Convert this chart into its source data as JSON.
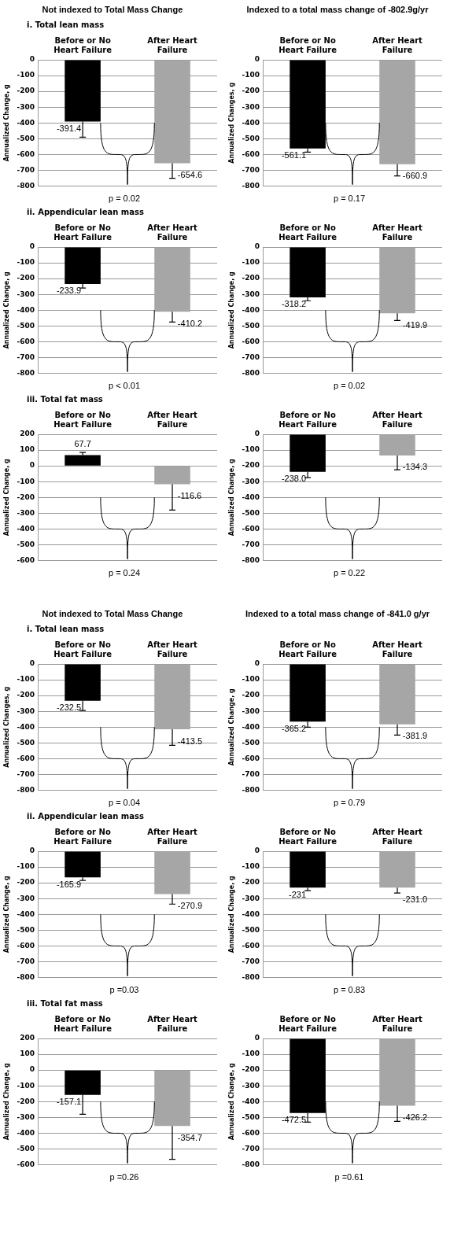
{
  "chart_data": [
    {
      "type": "bar",
      "title": "Not indexed to Total Mass Change",
      "subtitle": "i. Total lean mass",
      "categories": [
        "Before or No Heart Failure",
        "After Heart Failure"
      ],
      "values": [
        -391.4,
        -654.6
      ],
      "value_labels": [
        "-391.4",
        "-654.6"
      ],
      "colors": [
        "#000000",
        "#a6a6a6"
      ],
      "errors": [
        [
          -490,
          -391.4
        ],
        [
          -750,
          -654.6
        ]
      ],
      "ylabel": "Annualized Change, g",
      "ylim": [
        -800,
        0
      ],
      "yticks": [
        -800,
        -700,
        -600,
        -500,
        -400,
        -300,
        -200,
        -100,
        0
      ],
      "grid": "y",
      "annotations": [
        "p = 0.02"
      ]
    },
    {
      "type": "bar",
      "title": "Indexed to a total mass change of -802.9g/yr",
      "categories": [
        "Before or No Heart Failure",
        "After Heart Failure"
      ],
      "values": [
        -561.1,
        -660.9
      ],
      "value_labels": [
        "-561.1",
        "-660.9"
      ],
      "colors": [
        "#000000",
        "#a6a6a6"
      ],
      "errors": [
        [
          -585,
          -561.1
        ],
        [
          -735,
          -660.9
        ]
      ],
      "ylabel": "Annualized Changes, g",
      "ylim": [
        -800,
        0
      ],
      "yticks": [
        -800,
        -700,
        -600,
        -500,
        -400,
        -300,
        -200,
        -100,
        0
      ],
      "grid": "y",
      "annotations": [
        "p = 0.17"
      ]
    },
    {
      "type": "bar",
      "subtitle": "ii. Appendicular lean mass",
      "categories": [
        "Before or No Heart Failure",
        "After Heart Failure"
      ],
      "values": [
        -233.9,
        -410.2
      ],
      "value_labels": [
        "-233.9",
        "-410.2"
      ],
      "colors": [
        "#000000",
        "#a6a6a6"
      ],
      "errors": [
        [
          -260,
          -233.9
        ],
        [
          -475,
          -410.2
        ]
      ],
      "ylabel": "Annualized Change, g",
      "ylim": [
        -800,
        0
      ],
      "yticks": [
        -800,
        -700,
        -600,
        -500,
        -400,
        -300,
        -200,
        -100,
        0
      ],
      "grid": "y",
      "annotations": [
        "p < 0.01"
      ]
    },
    {
      "type": "bar",
      "categories": [
        "Before or No Heart Failure",
        "After Heart Failure"
      ],
      "values": [
        -318.2,
        -419.9
      ],
      "value_labels": [
        "-318.2",
        "-419.9"
      ],
      "colors": [
        "#000000",
        "#a6a6a6"
      ],
      "errors": [
        [
          -340,
          -318.2
        ],
        [
          -465,
          -419.9
        ]
      ],
      "ylabel": "Annualized Change, g",
      "ylim": [
        -800,
        0
      ],
      "yticks": [
        -800,
        -700,
        -600,
        -500,
        -400,
        -300,
        -200,
        -100,
        0
      ],
      "grid": "y",
      "annotations": [
        "p = 0.02"
      ]
    },
    {
      "type": "bar",
      "subtitle": "iii. Total fat mass",
      "categories": [
        "Before or No Heart Failure",
        "After Heart Failure"
      ],
      "values": [
        67.7,
        -116.6
      ],
      "value_labels": [
        "67.7",
        "-116.6"
      ],
      "colors": [
        "#000000",
        "#a6a6a6"
      ],
      "errors": [
        [
          67.7,
          85
        ],
        [
          -280,
          -116.6
        ]
      ],
      "ylabel": "Annualized Change, g",
      "ylim": [
        -600,
        200
      ],
      "yticks": [
        -600,
        -500,
        -400,
        -300,
        -200,
        -100,
        0,
        100,
        200
      ],
      "grid": "y",
      "annotations": [
        "p = 0.24"
      ]
    },
    {
      "type": "bar",
      "categories": [
        "Before or No Heart Failure",
        "After Heart Failure"
      ],
      "values": [
        -238.0,
        -134.3
      ],
      "value_labels": [
        "-238.0",
        "-134.3"
      ],
      "colors": [
        "#000000",
        "#a6a6a6"
      ],
      "errors": [
        [
          -275,
          -238.0
        ],
        [
          -225,
          -134.3
        ]
      ],
      "ylabel": "Annualized Change, g",
      "ylim": [
        -800,
        0
      ],
      "yticks": [
        -800,
        -700,
        -600,
        -500,
        -400,
        -300,
        -200,
        -100,
        0
      ],
      "grid": "y",
      "annotations": [
        "p = 0.22"
      ]
    },
    {
      "type": "bar",
      "title": "Not indexed to Total Mass Change",
      "subtitle": "i. Total lean mass",
      "categories": [
        "Before or No Heart Failure",
        "After Heart Failure"
      ],
      "values": [
        -232.5,
        -413.5
      ],
      "value_labels": [
        "-232.5",
        "-413.5"
      ],
      "colors": [
        "#000000",
        "#a6a6a6"
      ],
      "errors": [
        [
          -295,
          -232.5
        ],
        [
          -515,
          -413.5
        ]
      ],
      "ylabel": "Annualized Changes, g",
      "ylim": [
        -800,
        0
      ],
      "yticks": [
        -800,
        -700,
        -600,
        -500,
        -400,
        -300,
        -200,
        -100,
        0
      ],
      "grid": "y",
      "annotations": [
        "p = 0.04"
      ]
    },
    {
      "type": "bar",
      "title": "Indexed to a total mass change of -841.0 g/yr",
      "categories": [
        "Before or No Heart Failure",
        "After Heart Failure"
      ],
      "values": [
        -365.2,
        -381.9
      ],
      "value_labels": [
        "-365.2",
        "-381.9"
      ],
      "colors": [
        "#000000",
        "#a6a6a6"
      ],
      "errors": [
        [
          -400,
          -365.2
        ],
        [
          -450,
          -381.9
        ]
      ],
      "ylabel": "Annualized Change, g",
      "ylim": [
        -800,
        0
      ],
      "yticks": [
        -800,
        -700,
        -600,
        -500,
        -400,
        -300,
        -200,
        -100,
        0
      ],
      "grid": "y",
      "annotations": [
        "p = 0.79"
      ]
    },
    {
      "type": "bar",
      "subtitle": "ii. Appendicular lean mass",
      "categories": [
        "Before or No Heart Failure",
        "After Heart Failure"
      ],
      "values": [
        -165.9,
        -270.9
      ],
      "value_labels": [
        "-165.9",
        "-270.9"
      ],
      "colors": [
        "#000000",
        "#a6a6a6"
      ],
      "errors": [
        [
          -185,
          -165.9
        ],
        [
          -335,
          -270.9
        ]
      ],
      "ylabel": "Annualized Change, g",
      "ylim": [
        -800,
        0
      ],
      "yticks": [
        -800,
        -700,
        -600,
        -500,
        -400,
        -300,
        -200,
        -100,
        0
      ],
      "grid": "y",
      "annotations": [
        "p =0.03"
      ]
    },
    {
      "type": "bar",
      "categories": [
        "Before or No Heart Failure",
        "After Heart Failure"
      ],
      "values": [
        -231,
        -231.0
      ],
      "value_labels": [
        "-231",
        "-231.0"
      ],
      "colors": [
        "#000000",
        "#a6a6a6"
      ],
      "errors": [
        [
          -250,
          -231
        ],
        [
          -265,
          -231.0
        ]
      ],
      "ylabel": "Annualized Change, g",
      "ylim": [
        -800,
        0
      ],
      "yticks": [
        -800,
        -700,
        -600,
        -500,
        -400,
        -300,
        -200,
        -100,
        0
      ],
      "grid": "y",
      "annotations": [
        "p = 0.83"
      ]
    },
    {
      "type": "bar",
      "subtitle": "iii. Total fat mass",
      "categories": [
        "Before or No Heart Failure",
        "After Heart Failure"
      ],
      "values": [
        -157.1,
        -354.7
      ],
      "value_labels": [
        "-157.1",
        "-354.7"
      ],
      "colors": [
        "#000000",
        "#a6a6a6"
      ],
      "errors": [
        [
          -280,
          -157.1
        ],
        [
          -565,
          -354.7
        ]
      ],
      "ylabel": "Annualized Change, g",
      "ylim": [
        -600,
        200
      ],
      "yticks": [
        -600,
        -500,
        -400,
        -300,
        -200,
        -100,
        0,
        100,
        200
      ],
      "grid": "y",
      "annotations": [
        "p =0.26"
      ]
    },
    {
      "type": "bar",
      "categories": [
        "Before or No Heart Failure",
        "After Heart Failure"
      ],
      "values": [
        -472.5,
        -426.2
      ],
      "value_labels": [
        "-472.5",
        "-426.2"
      ],
      "colors": [
        "#000000",
        "#a6a6a6"
      ],
      "errors": [
        [
          -530,
          -472.5
        ],
        [
          -525,
          -426.2
        ]
      ],
      "ylabel": "Annualized Change, g",
      "ylim": [
        -800,
        0
      ],
      "yticks": [
        -800,
        -700,
        -600,
        -500,
        -400,
        -300,
        -200,
        -100,
        0
      ],
      "grid": "y",
      "annotations": [
        "p =0.61"
      ]
    }
  ]
}
